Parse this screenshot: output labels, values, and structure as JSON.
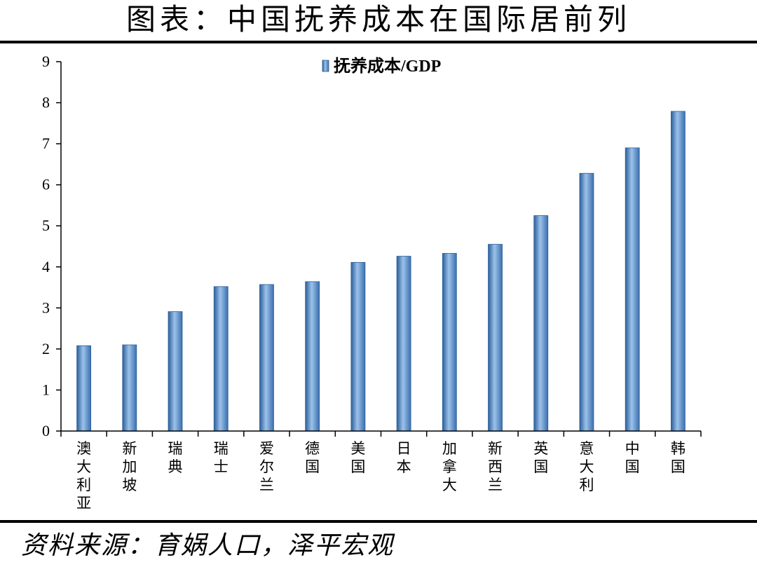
{
  "header": {
    "title": "图表：中国抚养成本在国际居前列"
  },
  "footer": {
    "source": "资料来源：育娲人口，泽平宏观"
  },
  "chart_data": {
    "type": "bar",
    "title": "",
    "xlabel": "",
    "ylabel": "",
    "categories": [
      "澳大利亚",
      "新加坡",
      "瑞典",
      "瑞士",
      "爱尔兰",
      "德国",
      "美国",
      "日本",
      "加拿大",
      "新西兰",
      "英国",
      "意大利",
      "中国",
      "韩国"
    ],
    "series": [
      {
        "name": "抚养成本/GDP",
        "values": [
          2.08,
          2.1,
          2.91,
          3.52,
          3.57,
          3.64,
          4.11,
          4.26,
          4.33,
          4.55,
          5.25,
          6.28,
          6.9,
          7.79
        ]
      }
    ],
    "yticks": [
      "0",
      "1",
      "2",
      "3",
      "4",
      "5",
      "6",
      "7",
      "8",
      "9"
    ],
    "ylim": [
      0,
      9
    ],
    "grid": false,
    "legend_position": "top-center",
    "colors": {
      "bar_light": "#8fb6e0",
      "bar_mid": "#5b8fc8",
      "bar_dark": "#2c5f9a",
      "axis": "#000000"
    }
  }
}
